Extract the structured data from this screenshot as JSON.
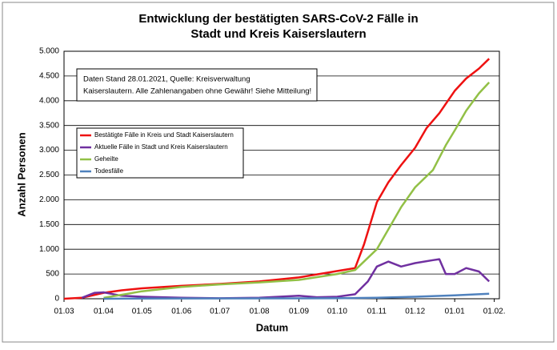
{
  "chart_data": {
    "type": "line",
    "title": [
      "Entwicklung der bestätigten SARS-CoV-2 Fälle in",
      "Stadt und Kreis Kaiserslautern"
    ],
    "x_label": "Datum",
    "y_label": "Anzahl Personen",
    "annotation": [
      "Daten Stand 28.01.2021, Quelle: Kreisverwaltung",
      "Kaiserslautern. Alle Zahlenangaben ohne Gewähr! Siehe Mitteilung!"
    ],
    "xlim": [
      "01.03",
      "05.02"
    ],
    "xticks": [
      "01.03",
      "01.04",
      "01.05",
      "01.06",
      "01.07",
      "01.08",
      "01.09",
      "01.10",
      "01.11",
      "01.12",
      "01.01",
      "01.02."
    ],
    "ylim": [
      0,
      5000
    ],
    "yticks": [
      0,
      {
        "value": 500,
        "label": "500"
      },
      {
        "value": 1000,
        "label": "1.000"
      },
      {
        "value": 1500,
        "label": "1.500"
      },
      {
        "value": 2000,
        "label": "2.000"
      },
      {
        "value": 2500,
        "label": "2.500"
      },
      {
        "value": 3000,
        "label": "3.000"
      },
      {
        "value": 3500,
        "label": "3.500"
      },
      {
        "value": 4000,
        "label": "4.000"
      },
      {
        "value": 4500,
        "label": "4.500"
      },
      {
        "value": 5000,
        "label": "5.000"
      }
    ],
    "grid": true,
    "series": [
      {
        "name": "Bestätigte Fälle in Kreis und Stadt Kaiserslautern",
        "color": "#ee1111",
        "x": [
          "01.03",
          "15.03",
          "01.04",
          "15.04",
          "01.05",
          "01.06",
          "01.07",
          "01.08",
          "01.09",
          "01.10",
          "15.10",
          "22.10",
          "01.11",
          "10.11",
          "20.11",
          "01.12",
          "10.12",
          "20.12",
          "01.01",
          "10.01",
          "20.01",
          "28.01"
        ],
        "values": [
          0,
          20,
          120,
          170,
          210,
          260,
          300,
          350,
          430,
          560,
          620,
          1100,
          1950,
          2350,
          2700,
          3050,
          3450,
          3750,
          4200,
          4450,
          4650,
          4850
        ]
      },
      {
        "name": "Aktuelle Fälle in Stadt und Kreis Kaiserslautern",
        "color": "#7030a0",
        "x": [
          "15.03",
          "25.03",
          "01.04",
          "15.04",
          "01.05",
          "01.06",
          "01.07",
          "01.08",
          "01.09",
          "15.09",
          "01.10",
          "15.10",
          "25.10",
          "01.11",
          "10.11",
          "20.11",
          "01.12",
          "15.12",
          "20.12",
          "25.12",
          "01.01",
          "10.01",
          "20.01",
          "28.01"
        ],
        "values": [
          20,
          120,
          130,
          60,
          40,
          20,
          10,
          20,
          60,
          30,
          40,
          90,
          350,
          650,
          750,
          650,
          720,
          780,
          800,
          500,
          500,
          620,
          550,
          350
        ]
      },
      {
        "name": "Geheilte",
        "color": "#92c046",
        "x": [
          "01.04",
          "15.04",
          "01.05",
          "01.06",
          "01.07",
          "01.08",
          "01.09",
          "01.10",
          "15.10",
          "01.11",
          "10.11",
          "20.11",
          "01.12",
          "15.12",
          "25.12",
          "01.01",
          "10.01",
          "20.01",
          "28.01"
        ],
        "values": [
          20,
          80,
          150,
          240,
          290,
          330,
          380,
          500,
          580,
          1000,
          1400,
          1850,
          2250,
          2600,
          3100,
          3400,
          3800,
          4150,
          4370
        ]
      },
      {
        "name": "Todesfälle",
        "color": "#4f81bd",
        "x": [
          "01.04",
          "01.05",
          "01.10",
          "01.11",
          "01.12",
          "01.01",
          "28.01"
        ],
        "values": [
          0,
          5,
          10,
          20,
          40,
          70,
          100
        ]
      }
    ]
  }
}
